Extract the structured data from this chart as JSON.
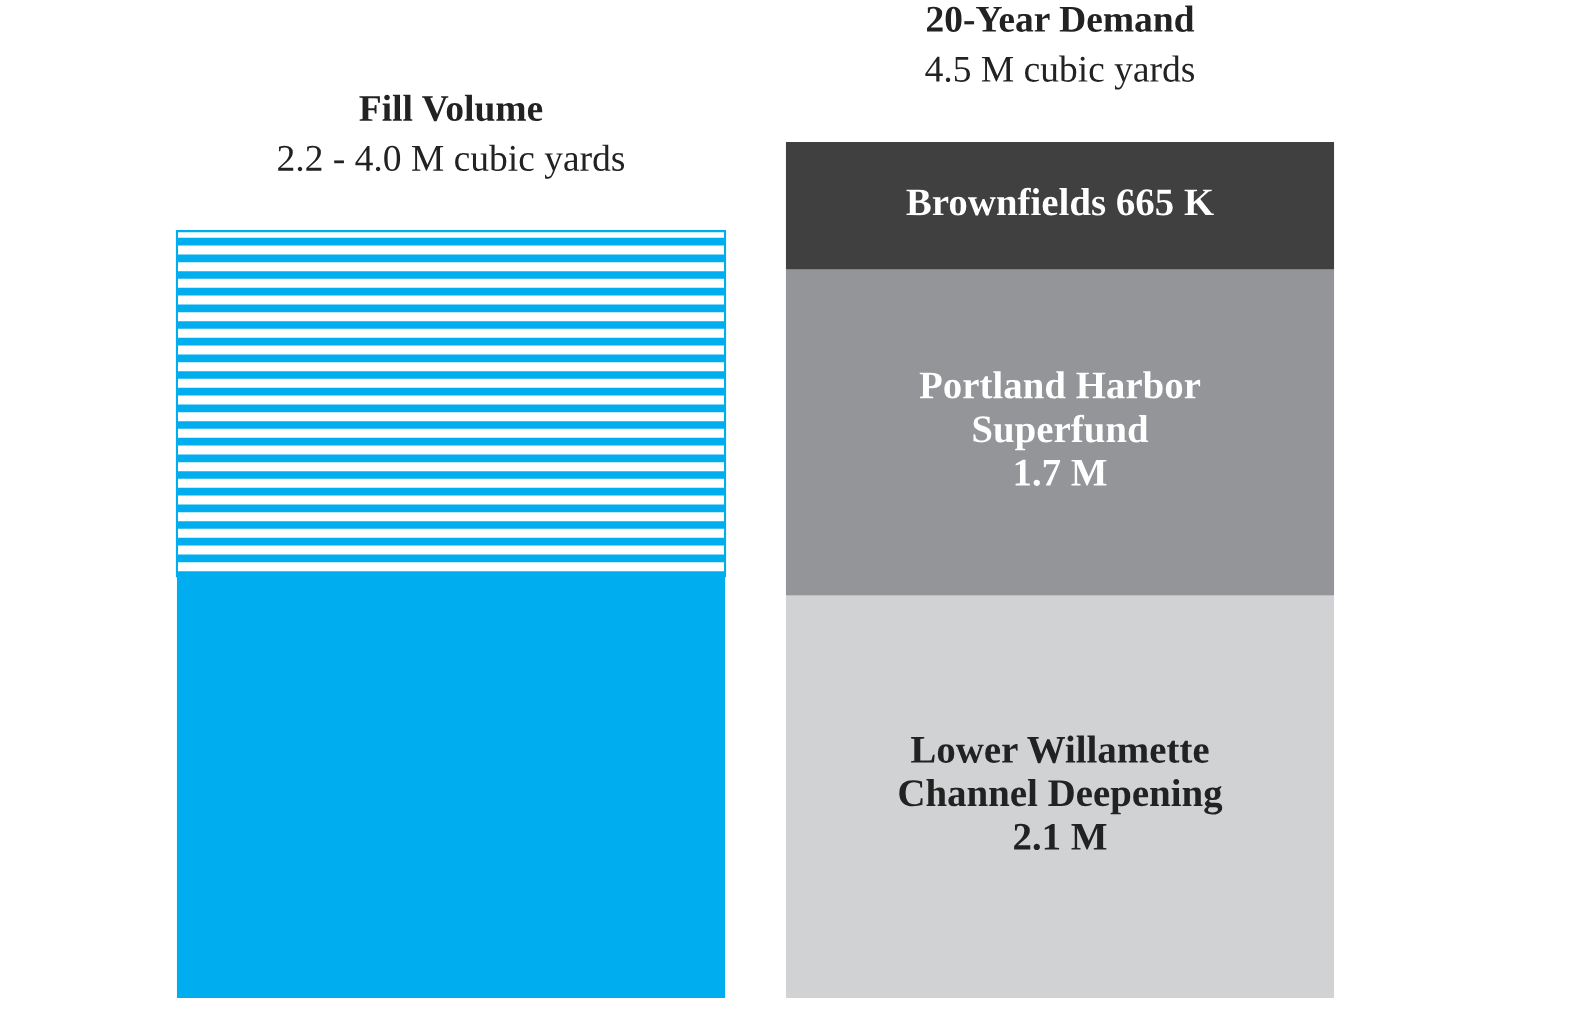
{
  "chart_data": {
    "type": "bar",
    "stacked": true,
    "categories": [
      null,
      null
    ],
    "annotations": [
      "Fill Volume\n2.2 - 4.0 M cubic yards",
      "20-Year Demand\n4.5 M cubic yards"
    ],
    "series": [
      {
        "color": "#00aeef",
        "values": [
          2.2,
          null
        ]
      },
      {
        "color": "#00aeef",
        "line_style": "solid",
        "values": [
          1.8,
          null
        ]
      },
      {
        "color": "#d1d2d4",
        "values": [
          null,
          2.1
        ],
        "value_labels": [
          null,
          "Lower Willamette\nChannel Deepening\n2.1 M"
        ]
      },
      {
        "color": "#939598",
        "values": [
          null,
          1.7
        ],
        "value_labels": [
          null,
          "Portland Harbor\nSuperfund\n1.7 M"
        ]
      },
      {
        "color": "#404040",
        "values": [
          null,
          0.665
        ],
        "value_labels": [
          null,
          "Brownfields 665 K"
        ]
      }
    ]
  }
}
